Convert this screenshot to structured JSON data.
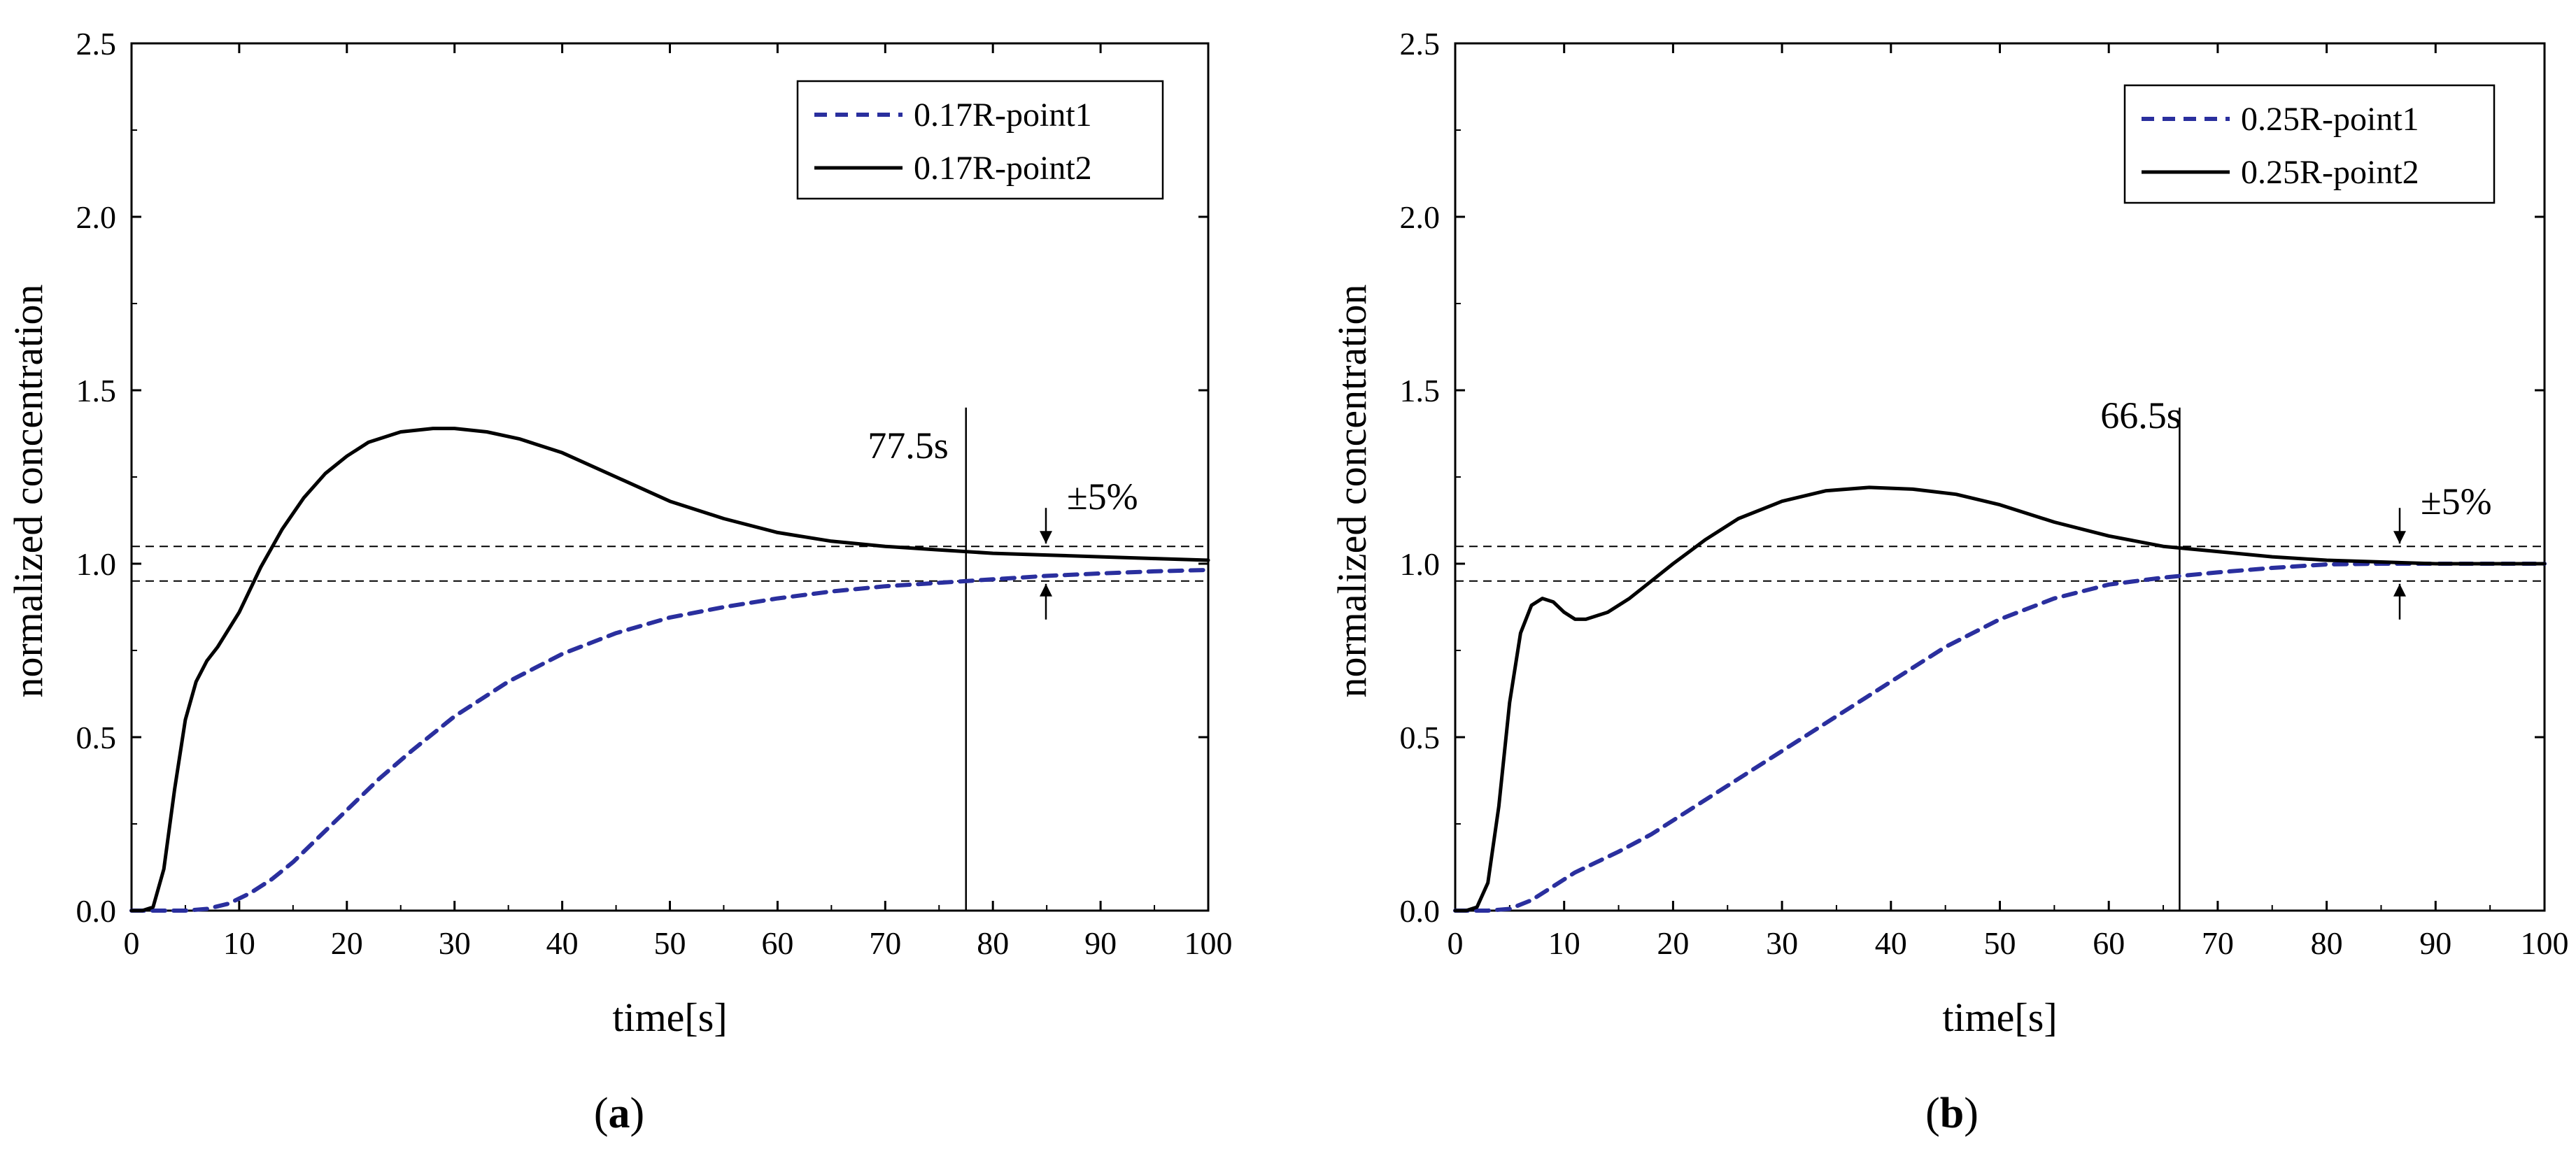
{
  "chart_data": [
    {
      "type": "line",
      "panel_label": "(a)",
      "panel_letter": "a",
      "xlabel": "time[s]",
      "ylabel": "normalized concentration",
      "xlim": [
        0,
        100
      ],
      "ylim": [
        0,
        2.5
      ],
      "x_ticks": [
        0,
        10,
        20,
        30,
        40,
        50,
        60,
        70,
        80,
        90,
        100
      ],
      "y_ticks": [
        0.0,
        0.5,
        1.0,
        1.5,
        2.0,
        2.5
      ],
      "x_tick_labels": [
        "0",
        "10",
        "20",
        "30",
        "40",
        "50",
        "60",
        "70",
        "80",
        "90",
        "100"
      ],
      "y_tick_labels": [
        "0.0",
        "0.5",
        "1.0",
        "1.5",
        "2.0",
        "2.5"
      ],
      "legend_position": "top-right",
      "series": [
        {
          "name": "0.17R-point1",
          "style": "dashed",
          "color": "#2a2f9e",
          "x": [
            0,
            3,
            5,
            7,
            9,
            11,
            13,
            15,
            17,
            20,
            23,
            26,
            30,
            35,
            40,
            45,
            50,
            55,
            60,
            65,
            70,
            75,
            80,
            85,
            90,
            95,
            100
          ],
          "y": [
            0,
            0,
            0,
            0.005,
            0.02,
            0.05,
            0.09,
            0.14,
            0.2,
            0.29,
            0.38,
            0.46,
            0.56,
            0.66,
            0.74,
            0.8,
            0.845,
            0.875,
            0.9,
            0.92,
            0.935,
            0.945,
            0.955,
            0.965,
            0.972,
            0.978,
            0.982
          ]
        },
        {
          "name": "0.17R-point2",
          "style": "solid",
          "color": "#000000",
          "x": [
            0,
            1,
            2,
            3,
            4,
            5,
            6,
            7,
            8,
            10,
            12,
            14,
            16,
            18,
            20,
            22,
            25,
            28,
            30,
            33,
            36,
            40,
            45,
            50,
            55,
            60,
            65,
            70,
            75,
            80,
            85,
            90,
            95,
            100
          ],
          "y": [
            0,
            0,
            0.01,
            0.12,
            0.35,
            0.55,
            0.66,
            0.72,
            0.76,
            0.86,
            0.99,
            1.1,
            1.19,
            1.26,
            1.31,
            1.35,
            1.38,
            1.39,
            1.39,
            1.38,
            1.36,
            1.32,
            1.25,
            1.18,
            1.13,
            1.09,
            1.065,
            1.05,
            1.04,
            1.03,
            1.025,
            1.02,
            1.015,
            1.01
          ]
        }
      ],
      "reference_lines": {
        "upper": 1.05,
        "lower": 0.95
      },
      "vertical_line_x": 77.5,
      "annotations": {
        "settle_time": "77.5s",
        "band": "±5%"
      }
    },
    {
      "type": "line",
      "panel_label": "(b)",
      "panel_letter": "b",
      "xlabel": "time[s]",
      "ylabel": "normalized concentration",
      "xlim": [
        0,
        100
      ],
      "ylim": [
        0,
        2.5
      ],
      "x_ticks": [
        0,
        10,
        20,
        30,
        40,
        50,
        60,
        70,
        80,
        90,
        100
      ],
      "y_ticks": [
        0.0,
        0.5,
        1.0,
        1.5,
        2.0,
        2.5
      ],
      "x_tick_labels": [
        "0",
        "10",
        "20",
        "30",
        "40",
        "50",
        "60",
        "70",
        "80",
        "90",
        "100"
      ],
      "y_tick_labels": [
        "0.0",
        "0.5",
        "1.0",
        "1.5",
        "2.0",
        "2.5"
      ],
      "legend_position": "top-right",
      "series": [
        {
          "name": "0.25R-point1",
          "style": "dashed",
          "color": "#2a2f9e",
          "x": [
            0,
            3,
            5,
            7,
            9,
            11,
            13,
            15,
            18,
            21,
            25,
            30,
            35,
            40,
            45,
            50,
            55,
            60,
            65,
            70,
            75,
            80,
            85,
            90,
            95,
            100
          ],
          "y": [
            0,
            0,
            0.005,
            0.03,
            0.07,
            0.11,
            0.14,
            0.17,
            0.22,
            0.28,
            0.36,
            0.46,
            0.56,
            0.66,
            0.76,
            0.84,
            0.9,
            0.94,
            0.96,
            0.975,
            0.988,
            0.998,
            1.0,
            1.0,
            1.0,
            1.0
          ]
        },
        {
          "name": "0.25R-point2",
          "style": "solid",
          "color": "#000000",
          "x": [
            0,
            1,
            2,
            3,
            4,
            5,
            6,
            7,
            8,
            9,
            10,
            11,
            12,
            13,
            14,
            16,
            18,
            20,
            23,
            26,
            30,
            34,
            38,
            42,
            46,
            50,
            55,
            60,
            65,
            70,
            75,
            80,
            85,
            90,
            95,
            100
          ],
          "y": [
            0,
            0,
            0.01,
            0.08,
            0.3,
            0.6,
            0.8,
            0.88,
            0.9,
            0.89,
            0.86,
            0.84,
            0.84,
            0.85,
            0.86,
            0.9,
            0.95,
            1.0,
            1.07,
            1.13,
            1.18,
            1.21,
            1.22,
            1.215,
            1.2,
            1.17,
            1.12,
            1.08,
            1.05,
            1.035,
            1.02,
            1.01,
            1.005,
            1.0,
            1.0,
            1.0
          ]
        }
      ],
      "reference_lines": {
        "upper": 1.05,
        "lower": 0.95
      },
      "vertical_line_x": 66.5,
      "annotations": {
        "settle_time": "66.5s",
        "band": "±5%"
      }
    }
  ]
}
